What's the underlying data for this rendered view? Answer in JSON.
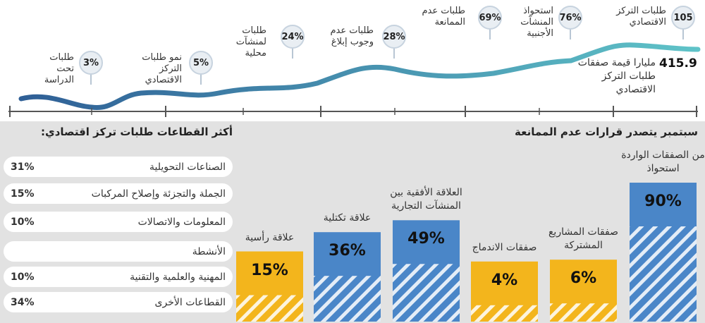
{
  "timeline": {
    "items": [
      {
        "figure": "3%",
        "text": "طلبات تحت الدراسة"
      },
      {
        "figure": "5%",
        "text": "نمو طلبات التركز الاقتصادي"
      },
      {
        "figure": "24%",
        "text": "طلبات لمنشآت محلية"
      },
      {
        "figure": "28%",
        "text": "طلبات عدم وجوب إبلاغ"
      },
      {
        "figure": "69%",
        "text": "طلبات عدم الممانعة"
      },
      {
        "figure": "76%",
        "text": "استحواذ المنشآت الأجنبية"
      },
      {
        "figure": "105",
        "text": "طلبات التركز الاقتصادي"
      }
    ],
    "total": {
      "figure": "415.9",
      "text": "مليارا قيمة صفقات طلبات التركز الاقتصادي"
    }
  },
  "sectors": {
    "title": "أكثر القطاعات طلبات تركز اقتصادي:",
    "rows": [
      {
        "label": "الصناعات التحويلية",
        "pct": "31%"
      },
      {
        "label": "الجملة والتجزئة وإصلاح المركبات",
        "pct": "15%"
      },
      {
        "label": "المعلومات والاتصالات",
        "pct": "10%"
      },
      {
        "label": "الأنشطة"
      },
      {
        "label": "المهنية والعلمية والتقنية",
        "pct": "10%"
      },
      {
        "label": "القطاعات الأخرى",
        "pct": "34%"
      }
    ]
  },
  "chart_data": {
    "type": "bar",
    "title": "سبتمبر يتصدر قرارات عدم الممانعة",
    "categories": [
      "من الصفقات الواردة استحواذ",
      "صفقات المشاريع المشتركة",
      "صفقات الاندماج",
      "العلاقة الأفقية بين المنشآت التجارية",
      "علاقة تكتلية",
      "علاقة رأسية"
    ],
    "values": [
      90,
      6,
      4,
      49,
      36,
      15
    ],
    "value_labels": [
      "90%",
      "6%",
      "4%",
      "49%",
      "36%",
      "15%"
    ],
    "colors": [
      "#4a86c8",
      "#f3b51c",
      "#f3b51c",
      "#4a86c8",
      "#4a86c8",
      "#f3b51c"
    ]
  }
}
